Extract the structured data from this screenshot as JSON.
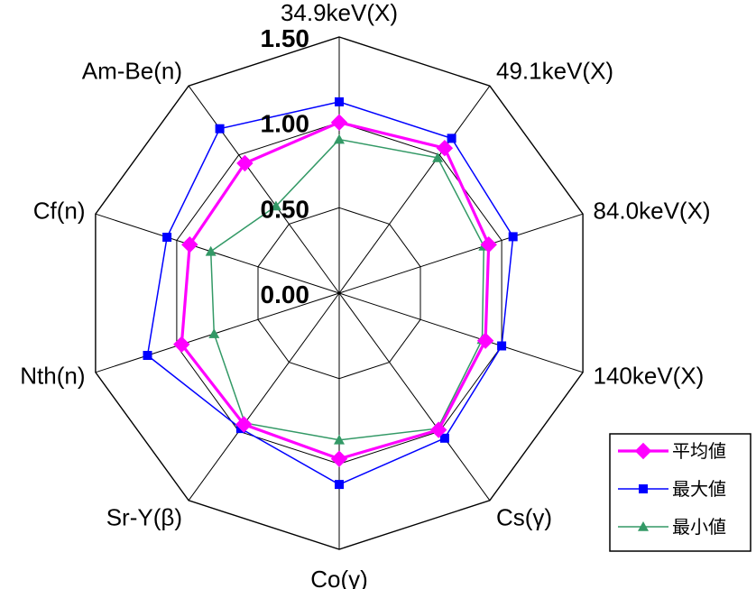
{
  "chart_data": {
    "type": "radar",
    "axes": [
      "34.9keV(X)",
      "49.1keV(X)",
      "84.0keV(X)",
      "140keV(X)",
      "Cs(γ)",
      "Co(γ)",
      "Sr-Y(β)",
      "Nth(n)",
      "Cf(n)",
      "Am-Be(n)"
    ],
    "radial_ticks": [
      "0.00",
      "0.50",
      "1.00",
      "1.50"
    ],
    "radial_tick_values": [
      0,
      0.5,
      1.0,
      1.5
    ],
    "rlim": [
      0,
      1.5
    ],
    "series": [
      {
        "name": "平均値",
        "color": "#ff00ff",
        "marker": "diamond",
        "values": [
          1.0,
          1.05,
          0.92,
          0.9,
          0.99,
          0.97,
          0.95,
          0.97,
          0.92,
          0.94
        ]
      },
      {
        "name": "最大値",
        "color": "#0000ff",
        "marker": "square",
        "values": [
          1.12,
          1.12,
          1.07,
          1.0,
          1.05,
          1.12,
          0.98,
          1.18,
          1.06,
          1.19
        ]
      },
      {
        "name": "最小値",
        "color": "#339966",
        "marker": "triangle",
        "values": [
          0.9,
          0.98,
          0.89,
          0.88,
          0.98,
          0.86,
          0.94,
          0.77,
          0.79,
          0.63
        ]
      }
    ]
  }
}
